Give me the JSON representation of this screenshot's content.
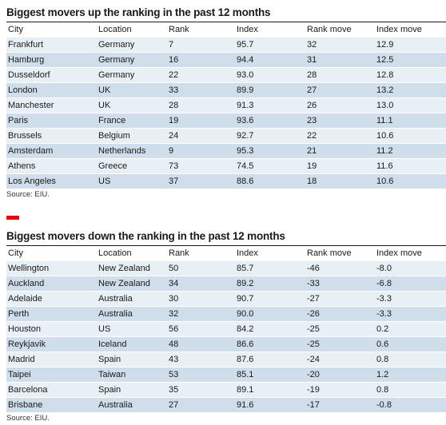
{
  "columns": [
    "City",
    "Location",
    "Rank",
    "Index",
    "Rank move",
    "Index move"
  ],
  "up": {
    "title": "Biggest movers up the ranking in the past 12 months",
    "source": "Source: EIU.",
    "rows": [
      [
        "Frankfurt",
        "Germany",
        "7",
        "95.7",
        "32",
        "12.9"
      ],
      [
        "Hamburg",
        "Germany",
        "16",
        "94.4",
        "31",
        "12.5"
      ],
      [
        "Dusseldorf",
        "Germany",
        "22",
        "93.0",
        "28",
        "12.8"
      ],
      [
        "London",
        "UK",
        "33",
        "89.9",
        "27",
        "13.2"
      ],
      [
        "Manchester",
        "UK",
        "28",
        "91.3",
        "26",
        "13.0"
      ],
      [
        "Paris",
        "France",
        "19",
        "93.6",
        "23",
        "11.1"
      ],
      [
        "Brussels",
        "Belgium",
        "24",
        "92.7",
        "22",
        "10.6"
      ],
      [
        "Amsterdam",
        "Netherlands",
        "9",
        "95.3",
        "21",
        "11.2"
      ],
      [
        "Athens",
        "Greece",
        "73",
        "74.5",
        "19",
        "11.6"
      ],
      [
        "Los Angeles",
        "US",
        "37",
        "88.6",
        "18",
        "10.6"
      ]
    ]
  },
  "down": {
    "title": "Biggest movers down the ranking in the past 12 months",
    "source": "Source: EIU.",
    "rows": [
      [
        "Wellington",
        "New Zealand",
        "50",
        "85.7",
        "-46",
        "-8.0"
      ],
      [
        "Auckland",
        "New Zealand",
        "34",
        "89.2",
        "-33",
        "-6.8"
      ],
      [
        "Adelaide",
        "Australia",
        "30",
        "90.7",
        "-27",
        "-3.3"
      ],
      [
        "Perth",
        "Australia",
        "32",
        "90.0",
        "-26",
        "-3.3"
      ],
      [
        "Houston",
        "US",
        "56",
        "84.2",
        "-25",
        "0.2"
      ],
      [
        "Reykjavik",
        "Iceland",
        "48",
        "86.6",
        "-25",
        "0.6"
      ],
      [
        "Madrid",
        "Spain",
        "43",
        "87.6",
        "-24",
        "0.8"
      ],
      [
        "Taipei",
        "Taiwan",
        "53",
        "85.1",
        "-20",
        "1.2"
      ],
      [
        "Barcelona",
        "Spain",
        "35",
        "89.1",
        "-19",
        "0.8"
      ],
      [
        "Brisbane",
        "Australia",
        "27",
        "91.6",
        "-17",
        "-0.8"
      ]
    ]
  },
  "colors": {
    "accent": "#e3000f",
    "row_light": "#e8eff5",
    "row_dark": "#cfdeea"
  }
}
